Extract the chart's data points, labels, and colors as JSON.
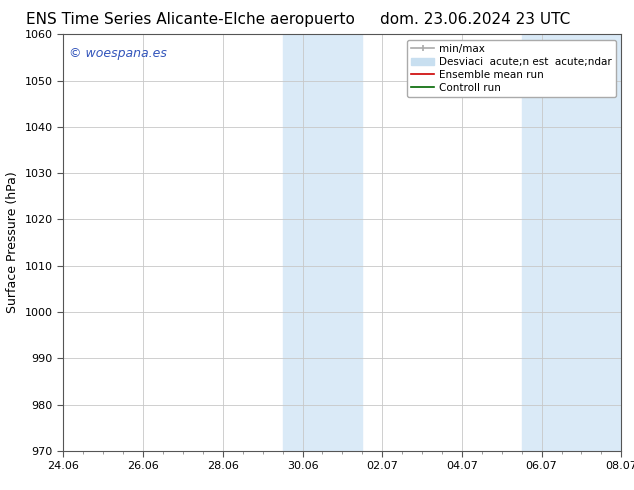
{
  "title_left": "ENS Time Series Alicante-Elche aeropuerto",
  "title_right": "dom. 23.06.2024 23 UTC",
  "ylabel": "Surface Pressure (hPa)",
  "ylim": [
    970,
    1060
  ],
  "yticks": [
    970,
    980,
    990,
    1000,
    1010,
    1020,
    1030,
    1040,
    1050,
    1060
  ],
  "xtick_labels": [
    "24.06",
    "26.06",
    "28.06",
    "30.06",
    "02.07",
    "04.07",
    "06.07",
    "08.07"
  ],
  "xtick_positions": [
    0,
    2,
    4,
    6,
    8,
    10,
    12,
    14
  ],
  "shaded_bands": [
    {
      "x_start": 5.5,
      "x_end": 7.5,
      "color": "#daeaf7"
    },
    {
      "x_start": 11.5,
      "x_end": 14.0,
      "color": "#daeaf7"
    }
  ],
  "watermark_text": "© woespana.es",
  "watermark_color": "#3355bb",
  "bg_color": "#ffffff",
  "plot_bg_color": "#ffffff",
  "grid_color": "#c8c8c8",
  "title_fontsize": 11,
  "tick_fontsize": 8,
  "ylabel_fontsize": 9,
  "legend_fontsize": 7.5,
  "legend_label_minmax": "min/max",
  "legend_label_std": "Desviaci  acute;n est  acute;ndar",
  "legend_label_ensemble": "Ensemble mean run",
  "legend_label_control": "Controll run",
  "minmax_color": "#aaaaaa",
  "std_color": "#c8dff0",
  "ensemble_color": "#cc0000",
  "control_color": "#006600"
}
